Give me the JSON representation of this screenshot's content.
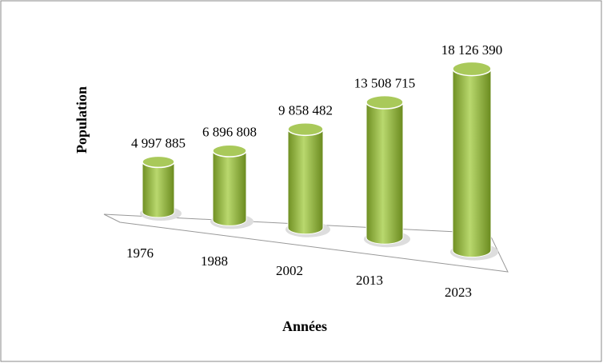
{
  "chart_data": {
    "type": "bar",
    "x_label": "Années",
    "y_label": "Population",
    "categories": [
      "1976",
      "1988",
      "2002",
      "2013",
      "2023"
    ],
    "values": [
      4997885,
      6896808,
      9858482,
      13508715,
      18126390
    ],
    "value_labels": [
      "4 997 885",
      "6 896 808",
      "9 858 482",
      "13 508 715",
      "18 126 390"
    ],
    "color": "#8db33a"
  }
}
